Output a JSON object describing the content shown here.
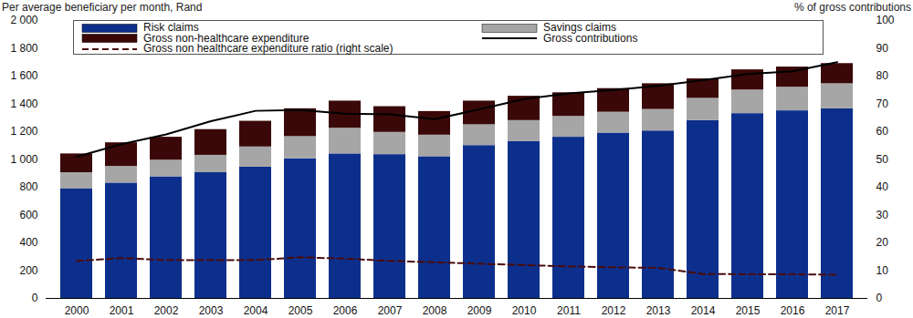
{
  "chart_data": {
    "type": "bar",
    "stacked": true,
    "legend": "top",
    "grid": false,
    "y_label": "Per average beneficiary per month, Rand",
    "y2_label": "% of gross contributions",
    "categories": [
      "2000",
      "2001",
      "2002",
      "2003",
      "2004",
      "2005",
      "2006",
      "2007",
      "2008",
      "2009",
      "2010",
      "2011",
      "2012",
      "2013",
      "2014",
      "2015",
      "2016",
      "2017"
    ],
    "ylim": [
      0,
      2000
    ],
    "yticks": [
      0,
      200,
      400,
      600,
      800,
      {
        "value": 1000,
        "label": "1 000"
      },
      {
        "value": 1200,
        "label": "1 200"
      },
      {
        "value": 1400,
        "label": "1 400"
      },
      {
        "value": 1600,
        "label": "1 600"
      },
      {
        "value": 1800,
        "label": "1 800"
      },
      {
        "value": 2000,
        "label": "2 000"
      }
    ],
    "y2lim": [
      0,
      100
    ],
    "y2ticks": [
      0,
      10,
      20,
      30,
      40,
      50,
      60,
      70,
      80,
      90,
      100
    ],
    "series": [
      {
        "name": "Risk claims",
        "type": "bar",
        "color": "#0d2f8c",
        "values": [
          790,
          830,
          875,
          905,
          945,
          1005,
          1040,
          1035,
          1020,
          1100,
          1130,
          1160,
          1190,
          1205,
          1280,
          1330,
          1350,
          1365
        ]
      },
      {
        "name": "Savings claims",
        "type": "bar",
        "color": "#a6a6a6",
        "values": [
          115,
          120,
          120,
          125,
          145,
          160,
          185,
          160,
          155,
          150,
          150,
          150,
          150,
          155,
          160,
          170,
          170,
          180
        ]
      },
      {
        "name": "Gross non-healthcare expenditure",
        "type": "bar",
        "color": "#3a0808",
        "values": [
          135,
          170,
          165,
          185,
          185,
          200,
          195,
          185,
          170,
          170,
          175,
          170,
          170,
          185,
          140,
          145,
          145,
          145
        ]
      },
      {
        "name": "Gross contributions",
        "type": "line",
        "color": "#000000",
        "line_style": "solid",
        "values": [
          1020,
          1110,
          1180,
          1275,
          1350,
          1355,
          1330,
          1325,
          1290,
          1360,
          1435,
          1475,
          1500,
          1530,
          1570,
          1615,
          1635,
          1700
        ]
      },
      {
        "name": "Gross non healthcare expenditure ratio (right scale)",
        "type": "line",
        "axis": "y2",
        "color": "#4a0c0c",
        "line_style": "dashed",
        "values": [
          13.5,
          14.5,
          13.8,
          13.8,
          13.8,
          14.8,
          14.3,
          13.5,
          13.0,
          12.5,
          12.0,
          11.5,
          11.2,
          11.0,
          8.8,
          8.7,
          8.7,
          8.5
        ]
      }
    ]
  }
}
